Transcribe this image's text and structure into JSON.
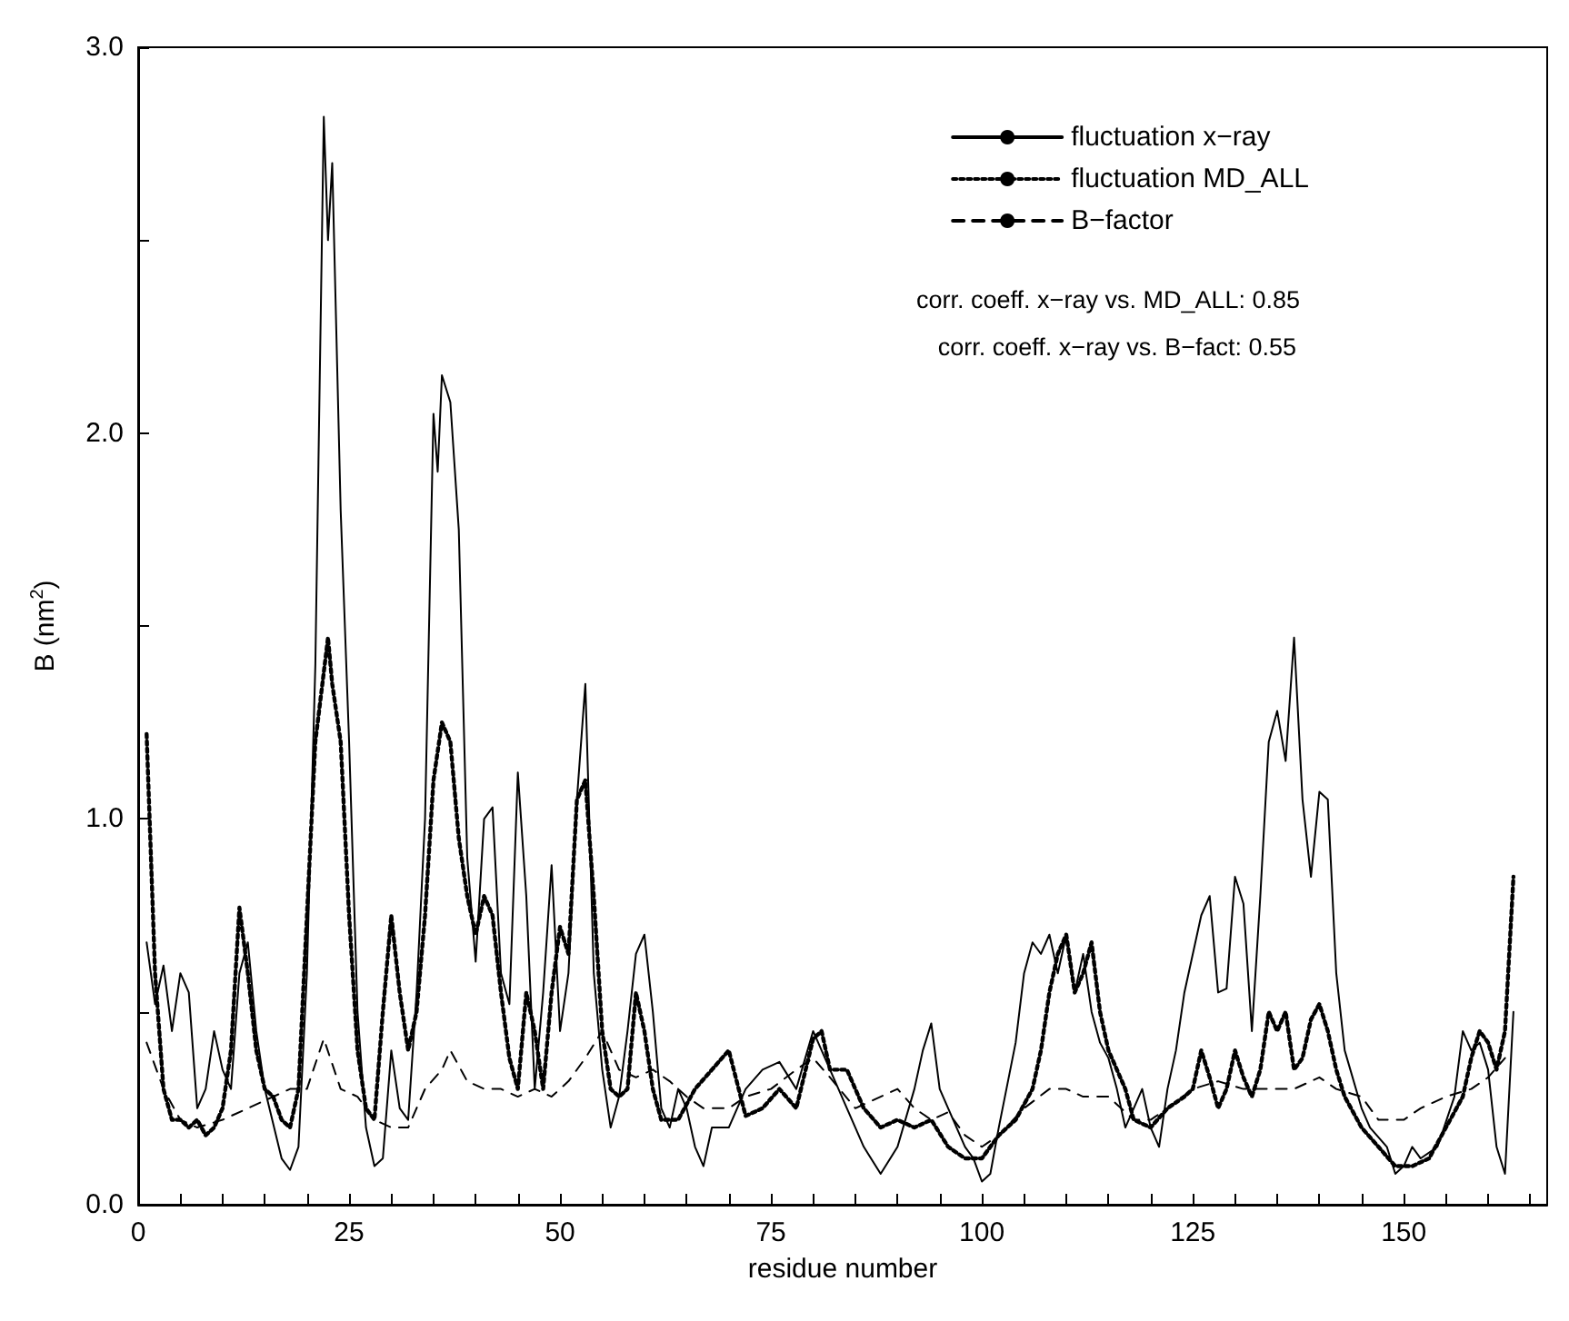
{
  "chart_data": {
    "type": "line",
    "xlabel": "residue number",
    "ylabel": "B (nm$^{2}$)",
    "xlim": [
      0,
      167
    ],
    "ylim": [
      0,
      3
    ],
    "xticks": [
      0,
      {
        "value": 5,
        "label": null
      },
      {
        "value": 10,
        "label": null
      },
      {
        "value": 15,
        "label": null
      },
      {
        "value": 20,
        "label": null
      },
      25,
      {
        "value": 30,
        "label": null
      },
      {
        "value": 35,
        "label": null
      },
      {
        "value": 40,
        "label": null
      },
      {
        "value": 45,
        "label": null
      },
      50,
      {
        "value": 55,
        "label": null
      },
      {
        "value": 60,
        "label": null
      },
      {
        "value": 65,
        "label": null
      },
      {
        "value": 70,
        "label": null
      },
      75,
      {
        "value": 80,
        "label": null
      },
      {
        "value": 85,
        "label": null
      },
      {
        "value": 90,
        "label": null
      },
      {
        "value": 95,
        "label": null
      },
      100,
      {
        "value": 105,
        "label": null
      },
      {
        "value": 110,
        "label": null
      },
      {
        "value": 115,
        "label": null
      },
      {
        "value": 120,
        "label": null
      },
      125,
      {
        "value": 130,
        "label": null
      },
      {
        "value": 135,
        "label": null
      },
      {
        "value": 140,
        "label": null
      },
      {
        "value": 145,
        "label": null
      },
      150,
      {
        "value": 155,
        "label": null
      },
      {
        "value": 160,
        "label": null
      },
      {
        "value": 165,
        "label": null
      }
    ],
    "yticks": [
      {
        "value": 0,
        "label": "0.0"
      },
      {
        "value": 0.5,
        "label": null
      },
      {
        "value": 1,
        "label": "1.0"
      },
      {
        "value": 1.5,
        "label": null
      },
      {
        "value": 2,
        "label": "2.0"
      },
      {
        "value": 2.5,
        "label": null
      },
      {
        "value": 3,
        "label": "3.0"
      }
    ],
    "grid": false,
    "legend": "top right",
    "marker": "none",
    "annotations": [
      "corr. coeff. x−ray vs. MD_ALL: 0.85",
      "corr. coeff. x−ray vs. B−fact: 0.55"
    ],
    "series": [
      {
        "name": "fluctuation x−ray",
        "color": "#000000",
        "line_style": "solid",
        "x": [
          1,
          2,
          3,
          4,
          5,
          6,
          7,
          8,
          9,
          10,
          11,
          12,
          13,
          14,
          15,
          17,
          18,
          19,
          20,
          21,
          22,
          22.5,
          23,
          24,
          25,
          26,
          27,
          28,
          29,
          30,
          31,
          32,
          33,
          34,
          35,
          35.5,
          36,
          37,
          38,
          39,
          40,
          41,
          42,
          43,
          44,
          45,
          46,
          47,
          48,
          49,
          50,
          51,
          52,
          53,
          54,
          55,
          56,
          57,
          58,
          59,
          60,
          61,
          62,
          63,
          64,
          65,
          66,
          67,
          68,
          70,
          72,
          74,
          76,
          78,
          80,
          82,
          84,
          86,
          88,
          90,
          92,
          93,
          94,
          95,
          97,
          98,
          99,
          100,
          101,
          102,
          104,
          105,
          106,
          107,
          108,
          109,
          110,
          111,
          112,
          113,
          114,
          115,
          116,
          117,
          118,
          119,
          120,
          121,
          122,
          123,
          124,
          126,
          127,
          128,
          129,
          130,
          131,
          132,
          133,
          134,
          135,
          136,
          137,
          138,
          139,
          140,
          141,
          142,
          143,
          145,
          146,
          148,
          149,
          150,
          151,
          152,
          154,
          156,
          157,
          158,
          159,
          160,
          161,
          162,
          163
        ],
        "values": [
          0.68,
          0.52,
          0.62,
          0.45,
          0.6,
          0.55,
          0.25,
          0.3,
          0.45,
          0.35,
          0.3,
          0.6,
          0.68,
          0.45,
          0.3,
          0.12,
          0.09,
          0.15,
          0.6,
          1.4,
          2.82,
          2.5,
          2.7,
          1.8,
          1.2,
          0.5,
          0.2,
          0.1,
          0.12,
          0.4,
          0.25,
          0.22,
          0.55,
          1.0,
          2.05,
          1.9,
          2.15,
          2.08,
          1.75,
          0.9,
          0.63,
          1.0,
          1.03,
          0.6,
          0.52,
          1.12,
          0.8,
          0.3,
          0.55,
          0.88,
          0.45,
          0.6,
          1.05,
          1.35,
          0.6,
          0.35,
          0.2,
          0.28,
          0.45,
          0.65,
          0.7,
          0.5,
          0.25,
          0.2,
          0.3,
          0.25,
          0.15,
          0.1,
          0.2,
          0.2,
          0.3,
          0.35,
          0.37,
          0.3,
          0.45,
          0.35,
          0.25,
          0.15,
          0.08,
          0.15,
          0.3,
          0.4,
          0.47,
          0.3,
          0.2,
          0.15,
          0.12,
          0.06,
          0.08,
          0.2,
          0.42,
          0.6,
          0.68,
          0.65,
          0.7,
          0.6,
          0.7,
          0.55,
          0.65,
          0.5,
          0.42,
          0.38,
          0.3,
          0.2,
          0.25,
          0.3,
          0.2,
          0.15,
          0.3,
          0.4,
          0.55,
          0.75,
          0.8,
          0.55,
          0.56,
          0.85,
          0.78,
          0.45,
          0.8,
          1.2,
          1.28,
          1.15,
          1.47,
          1.05,
          0.85,
          1.07,
          1.05,
          0.6,
          0.4,
          0.25,
          0.2,
          0.15,
          0.08,
          0.1,
          0.15,
          0.12,
          0.15,
          0.28,
          0.45,
          0.4,
          0.42,
          0.35,
          0.15,
          0.08,
          0.5
        ]
      },
      {
        "name": "fluctuation MD_ALL",
        "color": "#000000",
        "line_style": "dotted",
        "x": [
          1,
          2,
          3,
          4,
          5,
          6,
          7,
          8,
          9,
          10,
          11,
          12,
          13,
          14,
          15,
          16,
          17,
          18,
          19,
          20,
          21,
          22,
          22.5,
          23,
          24,
          25,
          26,
          27,
          28,
          29,
          30,
          31,
          32,
          33,
          34,
          35,
          36,
          37,
          38,
          39,
          40,
          41,
          42,
          43,
          44,
          45,
          46,
          47,
          48,
          49,
          50,
          51,
          52,
          53,
          54,
          55,
          56,
          57,
          58,
          59,
          60,
          61,
          62,
          64,
          66,
          68,
          70,
          72,
          74,
          76,
          78,
          80,
          81,
          82,
          84,
          86,
          88,
          90,
          92,
          94,
          96,
          98,
          100,
          102,
          104,
          106,
          107,
          108,
          109,
          110,
          111,
          112,
          113,
          114,
          115,
          117,
          118,
          120,
          122,
          124,
          125,
          126,
          127,
          128,
          129,
          130,
          131,
          132,
          133,
          134,
          135,
          136,
          137,
          138,
          139,
          140,
          141,
          142,
          143,
          145,
          147,
          149,
          151,
          153,
          155,
          157,
          158,
          159,
          160,
          161,
          162,
          163
        ],
        "values": [
          1.22,
          0.6,
          0.3,
          0.22,
          0.22,
          0.2,
          0.22,
          0.18,
          0.2,
          0.25,
          0.4,
          0.77,
          0.6,
          0.4,
          0.3,
          0.28,
          0.22,
          0.2,
          0.3,
          0.75,
          1.2,
          1.38,
          1.47,
          1.35,
          1.2,
          0.75,
          0.4,
          0.25,
          0.22,
          0.5,
          0.75,
          0.55,
          0.4,
          0.5,
          0.75,
          1.1,
          1.25,
          1.2,
          0.95,
          0.8,
          0.7,
          0.8,
          0.75,
          0.55,
          0.38,
          0.3,
          0.55,
          0.45,
          0.3,
          0.55,
          0.72,
          0.65,
          1.05,
          1.1,
          0.8,
          0.45,
          0.3,
          0.28,
          0.3,
          0.55,
          0.45,
          0.3,
          0.22,
          0.22,
          0.3,
          0.35,
          0.4,
          0.23,
          0.25,
          0.3,
          0.25,
          0.43,
          0.45,
          0.35,
          0.35,
          0.25,
          0.2,
          0.22,
          0.2,
          0.22,
          0.15,
          0.12,
          0.12,
          0.18,
          0.22,
          0.3,
          0.4,
          0.55,
          0.65,
          0.7,
          0.55,
          0.6,
          0.68,
          0.5,
          0.4,
          0.3,
          0.22,
          0.2,
          0.25,
          0.28,
          0.3,
          0.4,
          0.33,
          0.25,
          0.3,
          0.4,
          0.33,
          0.28,
          0.35,
          0.5,
          0.45,
          0.5,
          0.35,
          0.38,
          0.48,
          0.52,
          0.45,
          0.35,
          0.28,
          0.2,
          0.15,
          0.1,
          0.1,
          0.12,
          0.2,
          0.28,
          0.38,
          0.45,
          0.42,
          0.35,
          0.45,
          0.85
        ]
      },
      {
        "name": "B−factor",
        "color": "#000000",
        "line_style": "dashed",
        "x": [
          1,
          3,
          5,
          7,
          10,
          13,
          16,
          18,
          20,
          22,
          24,
          26,
          28,
          30,
          32,
          34,
          36,
          37,
          39,
          41,
          43,
          45,
          47,
          49,
          51,
          53,
          55,
          57,
          59,
          61,
          63,
          65,
          67,
          70,
          72,
          75,
          78,
          80,
          82,
          85,
          88,
          90,
          92,
          94,
          96,
          98,
          100,
          102,
          105,
          108,
          110,
          112,
          115,
          118,
          120,
          122,
          125,
          128,
          131,
          134,
          137,
          140,
          142,
          145,
          147,
          150,
          152,
          155,
          158,
          160,
          162
        ],
        "values": [
          0.42,
          0.3,
          0.22,
          0.2,
          0.22,
          0.25,
          0.28,
          0.3,
          0.3,
          0.43,
          0.3,
          0.28,
          0.22,
          0.2,
          0.2,
          0.3,
          0.35,
          0.4,
          0.32,
          0.3,
          0.3,
          0.28,
          0.3,
          0.28,
          0.32,
          0.38,
          0.45,
          0.35,
          0.33,
          0.35,
          0.32,
          0.28,
          0.25,
          0.25,
          0.28,
          0.3,
          0.35,
          0.38,
          0.33,
          0.25,
          0.28,
          0.3,
          0.25,
          0.22,
          0.24,
          0.18,
          0.15,
          0.18,
          0.25,
          0.3,
          0.3,
          0.28,
          0.28,
          0.22,
          0.22,
          0.25,
          0.3,
          0.32,
          0.3,
          0.3,
          0.3,
          0.33,
          0.3,
          0.28,
          0.22,
          0.22,
          0.25,
          0.28,
          0.3,
          0.33,
          0.38
        ]
      }
    ]
  }
}
